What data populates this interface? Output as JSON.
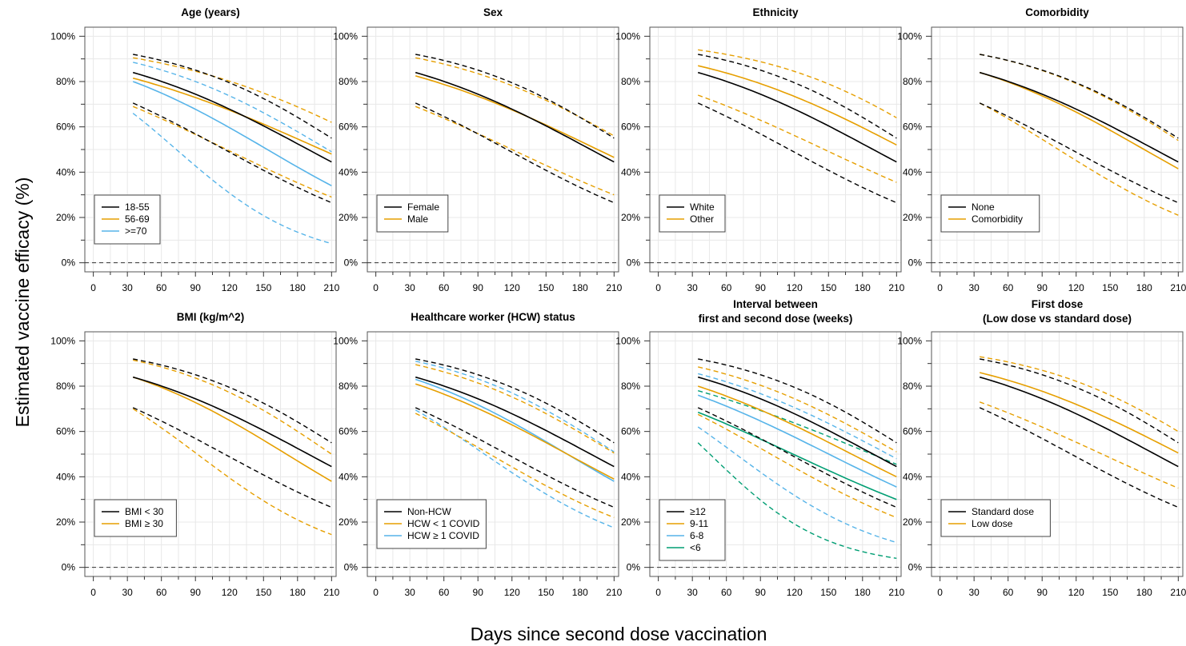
{
  "figure": {
    "ylabel": "Estimated vaccine efficacy (%)",
    "xlabel": "Days since second dose vaccination"
  },
  "colors": {
    "black": "#000000",
    "orange": "#E69F00",
    "skyblue": "#56B4E9",
    "green": "#009E73",
    "grid": "#e8e8e8",
    "zeroline": "#333333"
  },
  "chart_data": [
    {
      "type": "line",
      "title": [
        "Age (years)"
      ],
      "xlim": [
        0,
        210
      ],
      "ylim": [
        0,
        100
      ],
      "xticks": [
        0,
        30,
        60,
        90,
        120,
        150,
        180,
        210
      ],
      "yticks": [
        0,
        20,
        40,
        60,
        80,
        100
      ],
      "legend_position": "bottom-left",
      "x": [
        35,
        210
      ],
      "series": [
        {
          "name": "18-55",
          "color": "black",
          "est": [
            84,
            44.5
          ],
          "lower": [
            70.5,
            26.5
          ],
          "upper": [
            92,
            55
          ]
        },
        {
          "name": "56-69",
          "color": "orange",
          "est": [
            81.5,
            48
          ],
          "lower": [
            69,
            29
          ],
          "upper": [
            90.5,
            62
          ]
        },
        {
          "name": ">=70",
          "color": "skyblue",
          "est": [
            80,
            34
          ],
          "lower": [
            66,
            8.5
          ],
          "upper": [
            88.5,
            49
          ]
        }
      ]
    },
    {
      "type": "line",
      "title": [
        "Sex"
      ],
      "xlim": [
        0,
        210
      ],
      "ylim": [
        0,
        100
      ],
      "xticks": [
        0,
        30,
        60,
        90,
        120,
        150,
        180,
        210
      ],
      "yticks": [
        0,
        20,
        40,
        60,
        80,
        100
      ],
      "legend_position": "bottom-left",
      "x": [
        35,
        210
      ],
      "series": [
        {
          "name": "Female",
          "color": "black",
          "est": [
            84,
            44.5
          ],
          "lower": [
            70.5,
            26.5
          ],
          "upper": [
            92,
            55
          ]
        },
        {
          "name": "Male",
          "color": "orange",
          "est": [
            82.5,
            46.5
          ],
          "lower": [
            69,
            30
          ],
          "upper": [
            90.5,
            56
          ]
        }
      ]
    },
    {
      "type": "line",
      "title": [
        "Ethnicity"
      ],
      "xlim": [
        0,
        210
      ],
      "ylim": [
        0,
        100
      ],
      "xticks": [
        0,
        30,
        60,
        90,
        120,
        150,
        180,
        210
      ],
      "yticks": [
        0,
        20,
        40,
        60,
        80,
        100
      ],
      "legend_position": "bottom-left",
      "x": [
        35,
        210
      ],
      "series": [
        {
          "name": "White",
          "color": "black",
          "est": [
            84,
            44.5
          ],
          "lower": [
            70.5,
            26.5
          ],
          "upper": [
            92,
            55
          ]
        },
        {
          "name": "Other",
          "color": "orange",
          "est": [
            87,
            52
          ],
          "lower": [
            74,
            35.5
          ],
          "upper": [
            94,
            64
          ]
        }
      ]
    },
    {
      "type": "line",
      "title": [
        "Comorbidity"
      ],
      "xlim": [
        0,
        210
      ],
      "ylim": [
        0,
        100
      ],
      "xticks": [
        0,
        30,
        60,
        90,
        120,
        150,
        180,
        210
      ],
      "yticks": [
        0,
        20,
        40,
        60,
        80,
        100
      ],
      "legend_position": "bottom-left",
      "x": [
        35,
        210
      ],
      "series": [
        {
          "name": "None",
          "color": "black",
          "est": [
            84,
            44.5
          ],
          "lower": [
            70.5,
            26.5
          ],
          "upper": [
            92,
            55
          ]
        },
        {
          "name": "Comorbidity",
          "color": "orange",
          "est": [
            84,
            41.5
          ],
          "lower": [
            70.5,
            21
          ],
          "upper": [
            92,
            54
          ]
        }
      ]
    },
    {
      "type": "line",
      "title": [
        "BMI (kg/m^2)"
      ],
      "xlim": [
        0,
        210
      ],
      "ylim": [
        0,
        100
      ],
      "xticks": [
        0,
        30,
        60,
        90,
        120,
        150,
        180,
        210
      ],
      "yticks": [
        0,
        20,
        40,
        60,
        80,
        100
      ],
      "legend_position": "bottom-left",
      "x": [
        35,
        210
      ],
      "series": [
        {
          "name": "BMI < 30",
          "color": "black",
          "est": [
            84,
            44.5
          ],
          "lower": [
            70.5,
            26.5
          ],
          "upper": [
            92,
            55
          ]
        },
        {
          "name": "BMI ≥ 30",
          "color": "orange",
          "est": [
            84,
            38
          ],
          "lower": [
            70,
            14.5
          ],
          "upper": [
            91.5,
            50
          ]
        }
      ]
    },
    {
      "type": "line",
      "title": [
        "Healthcare worker (HCW) status"
      ],
      "xlim": [
        0,
        210
      ],
      "ylim": [
        0,
        100
      ],
      "xticks": [
        0,
        30,
        60,
        90,
        120,
        150,
        180,
        210
      ],
      "yticks": [
        0,
        20,
        40,
        60,
        80,
        100
      ],
      "legend_position": "bottom-left",
      "x": [
        35,
        210
      ],
      "series": [
        {
          "name": "Non-HCW",
          "color": "black",
          "est": [
            84,
            44.5
          ],
          "lower": [
            70.5,
            26.5
          ],
          "upper": [
            92,
            55
          ]
        },
        {
          "name": "HCW < 1 COVID",
          "color": "orange",
          "est": [
            81,
            39
          ],
          "lower": [
            68,
            22
          ],
          "upper": [
            89.5,
            50.5
          ]
        },
        {
          "name": "HCW ≥ 1 COVID",
          "color": "skyblue",
          "est": [
            83,
            38
          ],
          "lower": [
            69.5,
            17.5
          ],
          "upper": [
            91,
            51
          ]
        }
      ]
    },
    {
      "type": "line",
      "title": [
        "Interval between",
        "first and second dose (weeks)"
      ],
      "xlim": [
        0,
        210
      ],
      "ylim": [
        0,
        100
      ],
      "xticks": [
        0,
        30,
        60,
        90,
        120,
        150,
        180,
        210
      ],
      "yticks": [
        0,
        20,
        40,
        60,
        80,
        100
      ],
      "legend_position": "bottom-left",
      "x": [
        35,
        210
      ],
      "series": [
        {
          "name": "≥12",
          "color": "black",
          "est": [
            84,
            44.5
          ],
          "lower": [
            70.5,
            26.5
          ],
          "upper": [
            92,
            55
          ]
        },
        {
          "name": "9-11",
          "color": "orange",
          "est": [
            80,
            40
          ],
          "lower": [
            67.5,
            22
          ],
          "upper": [
            88.5,
            51
          ]
        },
        {
          "name": "6-8",
          "color": "skyblue",
          "est": [
            76,
            35.5
          ],
          "lower": [
            62,
            11
          ],
          "upper": [
            85.5,
            48
          ]
        },
        {
          "name": "<6",
          "color": "green",
          "est": [
            68.5,
            30
          ],
          "lower": [
            55,
            4
          ],
          "upper": [
            78,
            45.5
          ]
        }
      ]
    },
    {
      "type": "line",
      "title": [
        "First dose",
        "(Low dose vs standard dose)"
      ],
      "xlim": [
        0,
        210
      ],
      "ylim": [
        0,
        100
      ],
      "xticks": [
        0,
        30,
        60,
        90,
        120,
        150,
        180,
        210
      ],
      "yticks": [
        0,
        20,
        40,
        60,
        80,
        100
      ],
      "legend_position": "bottom-left",
      "x": [
        35,
        210
      ],
      "series": [
        {
          "name": "Standard dose",
          "color": "black",
          "est": [
            84,
            44.5
          ],
          "lower": [
            70.5,
            26.5
          ],
          "upper": [
            92,
            55
          ]
        },
        {
          "name": "Low dose",
          "color": "orange",
          "est": [
            86,
            50.5
          ],
          "lower": [
            73,
            35
          ],
          "upper": [
            93,
            60
          ]
        }
      ]
    }
  ]
}
